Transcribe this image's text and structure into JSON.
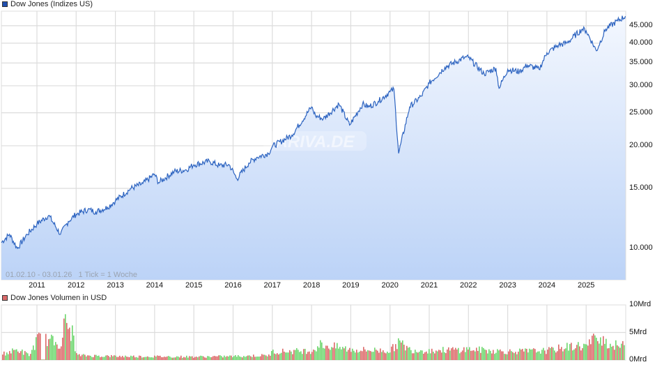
{
  "price_panel": {
    "legend_label": "Dow Jones (Indizes US)",
    "legend_color": "#2150b0",
    "range_label": "01.02.10 - 03.01.26",
    "tick_label": "1 Tick = 1 Woche",
    "watermark": "ARIVA.DE",
    "y_ticks": [
      "45.000",
      "40.000",
      "35.000",
      "30.000",
      "25.000",
      "20.000",
      "15.000",
      "10.000"
    ],
    "x_ticks": [
      "2011",
      "2012",
      "2013",
      "2014",
      "2015",
      "2016",
      "2017",
      "2018",
      "2019",
      "2020",
      "2021",
      "2022",
      "2023",
      "2024",
      "2025"
    ],
    "line_color": "#2c63c0",
    "fill_top": "#f3f7fe",
    "fill_bottom": "#bcd3f7"
  },
  "volume_panel": {
    "legend_label": "Dow Jones Volumen in USD",
    "legend_color": "#d96a6a",
    "y_ticks": [
      "10Mrd",
      "5Mrd",
      "0Mrd"
    ],
    "up_color": "#6cd66c",
    "down_color": "#dc6767"
  },
  "chart_data": [
    {
      "type": "area",
      "title": "Dow Jones (Indizes US)",
      "xlabel": "",
      "ylabel": "",
      "y_scale": "log",
      "ylim": [
        8500,
        48000
      ],
      "grid": true,
      "legend_position": "top-left",
      "annotations": [
        "01.02.10 - 03.01.26",
        "1 Tick = 1 Woche"
      ],
      "x": [
        2010.09,
        2010.3,
        2010.5,
        2010.75,
        2011.0,
        2011.3,
        2011.6,
        2011.8,
        2012.0,
        2012.3,
        2012.5,
        2012.8,
        2013.0,
        2013.4,
        2013.7,
        2014.0,
        2014.1,
        2014.5,
        2014.8,
        2015.0,
        2015.4,
        2015.65,
        2015.9,
        2016.1,
        2016.4,
        2016.6,
        2016.9,
        2017.0,
        2017.5,
        2018.0,
        2018.1,
        2018.3,
        2018.7,
        2018.97,
        2019.3,
        2019.45,
        2019.7,
        2020.0,
        2020.1,
        2020.22,
        2020.5,
        2020.8,
        2021.0,
        2021.4,
        2021.9,
        2022.0,
        2022.4,
        2022.7,
        2022.78,
        2023.0,
        2023.3,
        2023.5,
        2023.8,
        2024.0,
        2024.3,
        2024.5,
        2024.9,
        2025.0,
        2025.26,
        2025.5,
        2025.8,
        2026.0
      ],
      "values": [
        10400,
        11000,
        10000,
        11000,
        11800,
        12500,
        11000,
        12000,
        12600,
        13000,
        12800,
        13200,
        13800,
        15000,
        15500,
        16500,
        15600,
        16800,
        17000,
        17600,
        18000,
        17500,
        17600,
        16000,
        17800,
        18500,
        19000,
        19900,
        21500,
        26000,
        24500,
        24000,
        26500,
        23000,
        26500,
        26000,
        27000,
        28800,
        29300,
        19000,
        26000,
        28000,
        30500,
        34000,
        36300,
        36300,
        32500,
        33800,
        29500,
        33500,
        33000,
        34500,
        33500,
        37500,
        39500,
        40000,
        44000,
        43500,
        38000,
        44000,
        46500,
        48000
      ]
    },
    {
      "type": "bar",
      "title": "Dow Jones Volumen in USD",
      "ylim": [
        0,
        10
      ],
      "ylabel": "Mrd",
      "y_ticks": [
        "0Mrd",
        "5Mrd",
        "10Mrd"
      ],
      "x": [
        2010.1,
        2010.5,
        2010.8,
        2011.0,
        2011.3,
        2011.6,
        2011.7,
        2011.9,
        2012.0,
        2013.0,
        2015.0,
        2016.0,
        2016.9,
        2017.0,
        2018.0,
        2018.2,
        2019.0,
        2020.0,
        2020.2,
        2020.5,
        2021.0,
        2022.0,
        2023.0,
        2024.0,
        2024.5,
        2024.8,
        2025.0,
        2025.3,
        2025.6,
        2026.0
      ],
      "values": [
        1.3,
        2.2,
        1.0,
        4.5,
        4.2,
        3.5,
        8.0,
        5.5,
        1.0,
        0.8,
        0.7,
        0.8,
        1.0,
        1.8,
        2.0,
        3.3,
        2.2,
        2.0,
        3.8,
        2.2,
        2.0,
        2.3,
        1.8,
        2.0,
        2.8,
        3.0,
        3.0,
        5.3,
        3.2,
        3.0
      ]
    }
  ]
}
